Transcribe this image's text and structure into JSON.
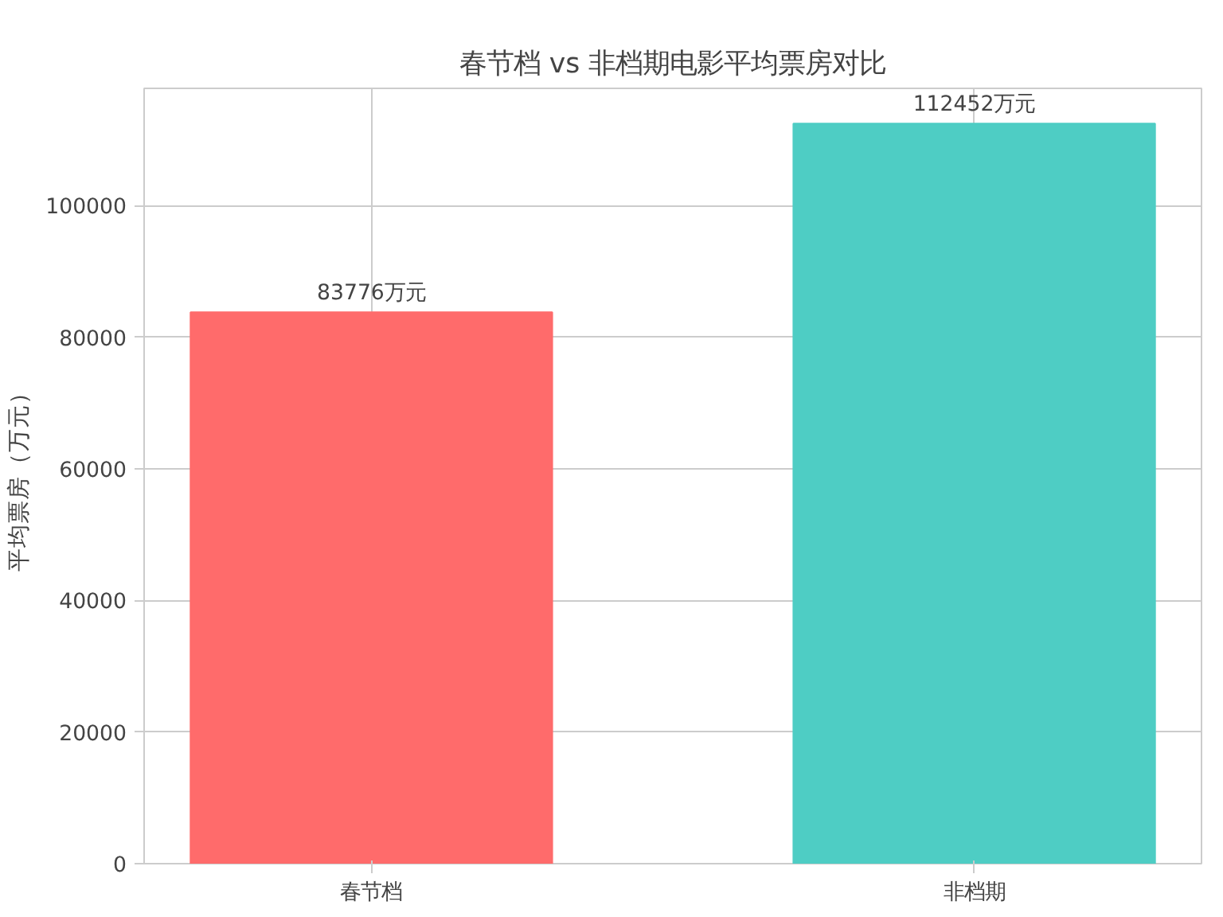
{
  "chart_data": {
    "type": "bar",
    "title": "春节档 vs 非档期电影平均票房对比",
    "ylabel": "平均票房（万元）",
    "categories": [
      "春节档",
      "非档期"
    ],
    "values": [
      83776,
      112452
    ],
    "colors": [
      "#ff6b6b",
      "#4ecdc4"
    ],
    "value_labels": [
      "83776万元",
      "112452万元"
    ],
    "ylim": [
      0,
      117800
    ],
    "yticks": [
      0,
      20000,
      40000,
      60000,
      80000,
      100000
    ],
    "grid": true
  }
}
